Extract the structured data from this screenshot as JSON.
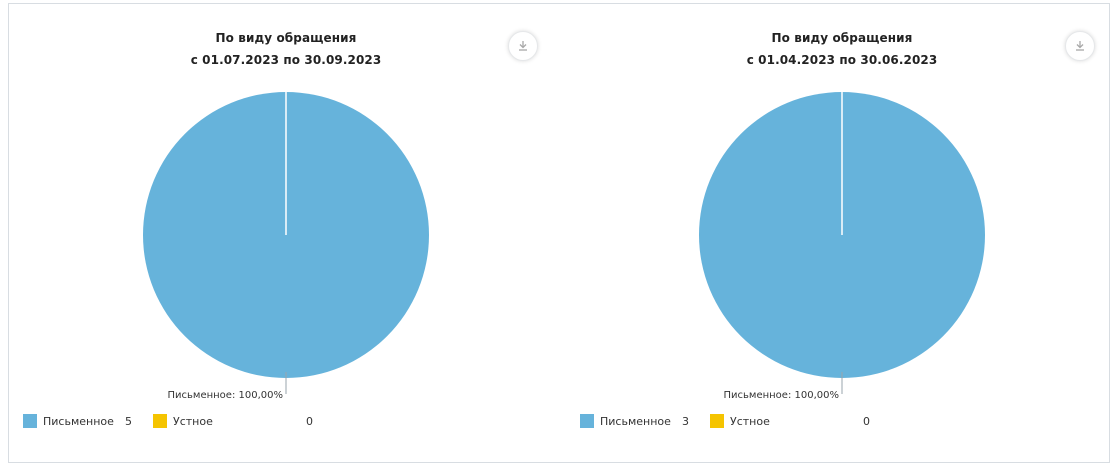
{
  "chart_data": [
    {
      "type": "pie",
      "title": "По виду обращения",
      "subtitle": "с 01.07.2023 по 30.09.2023",
      "series": [
        {
          "name": "Письменное",
          "value": 5,
          "percent_label": "Письменное: 100,00%",
          "color": "#66b3db"
        },
        {
          "name": "Устное",
          "value": 0,
          "color": "#f5c400"
        }
      ]
    },
    {
      "type": "pie",
      "title": "По виду обращения",
      "subtitle": "с 01.04.2023 по 30.06.2023",
      "series": [
        {
          "name": "Письменное",
          "value": 3,
          "percent_label": "Письменное: 100,00%",
          "color": "#66b3db"
        },
        {
          "name": "Устное",
          "value": 0,
          "color": "#f5c400"
        }
      ]
    }
  ],
  "icons": {
    "download": "download-icon"
  }
}
